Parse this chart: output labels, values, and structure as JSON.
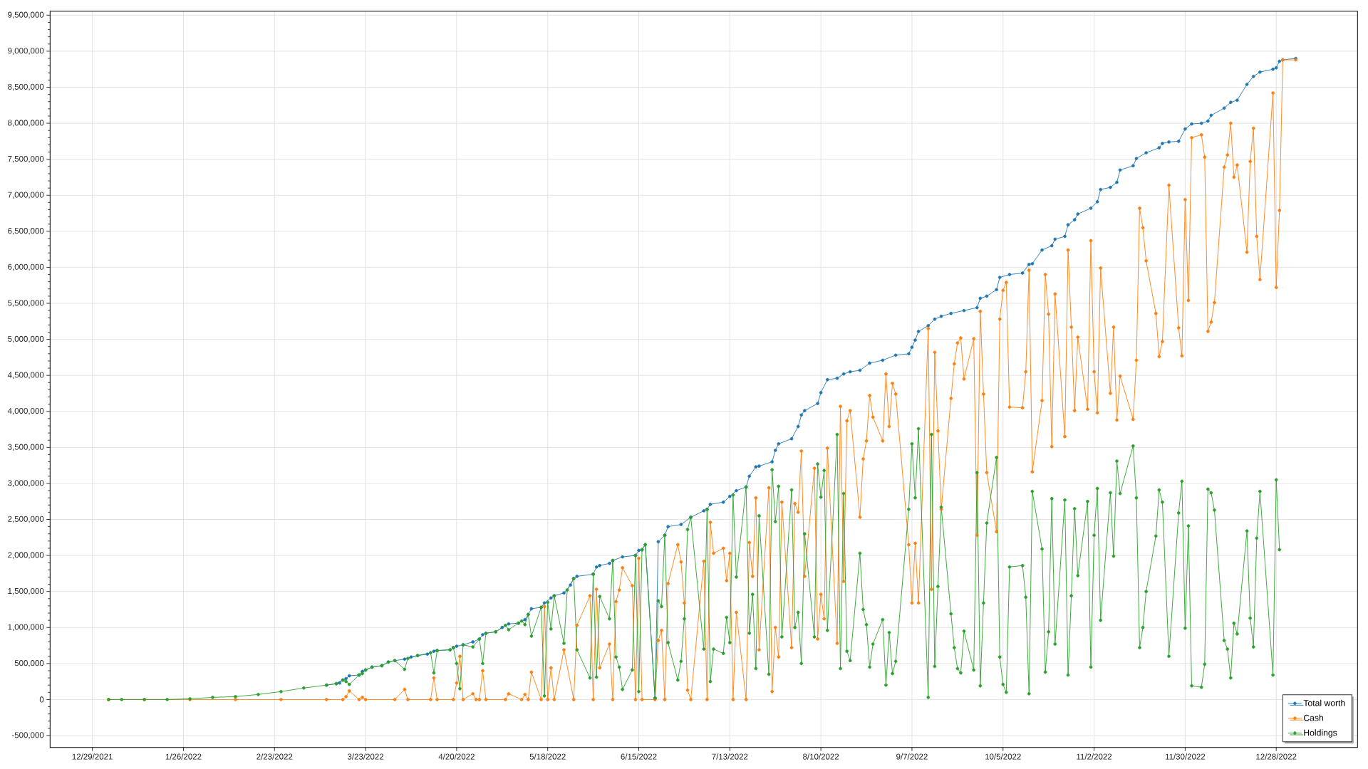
{
  "chart_data": {
    "type": "line",
    "xlim": [
      "2021-12-16",
      "2023-01-22"
    ],
    "ylim": [
      -665000,
      9555000
    ],
    "xticks": [
      {
        "value": "2021-12-29",
        "label": "12/29/2021"
      },
      {
        "value": "2022-01-26",
        "label": "1/26/2022"
      },
      {
        "value": "2022-02-23",
        "label": "2/23/2022"
      },
      {
        "value": "2022-03-23",
        "label": "3/23/2022"
      },
      {
        "value": "2022-04-20",
        "label": "4/20/2022"
      },
      {
        "value": "2022-05-18",
        "label": "5/18/2022"
      },
      {
        "value": "2022-06-15",
        "label": "6/15/2022"
      },
      {
        "value": "2022-07-13",
        "label": "7/13/2022"
      },
      {
        "value": "2022-08-10",
        "label": "8/10/2022"
      },
      {
        "value": "2022-09-07",
        "label": "9/7/2022"
      },
      {
        "value": "2022-10-05",
        "label": "10/5/2022"
      },
      {
        "value": "2022-11-02",
        "label": "11/2/2022"
      },
      {
        "value": "2022-11-30",
        "label": "11/30/2022"
      },
      {
        "value": "2022-12-28",
        "label": "12/28/2022"
      }
    ],
    "yticks": [
      {
        "value": -500000,
        "label": "-500,000"
      },
      0,
      {
        "value": 500000,
        "label": "500,000"
      },
      {
        "value": 1000000,
        "label": "1,000,000"
      },
      {
        "value": 1500000,
        "label": "1,500,000"
      },
      {
        "value": 2000000,
        "label": "2,000,000"
      },
      {
        "value": 2500000,
        "label": "2,500,000"
      },
      {
        "value": 3000000,
        "label": "3,000,000"
      },
      {
        "value": 3500000,
        "label": "3,500,000"
      },
      {
        "value": 4000000,
        "label": "4,000,000"
      },
      {
        "value": 4500000,
        "label": "4,500,000"
      },
      {
        "value": 5000000,
        "label": "5,000,000"
      },
      {
        "value": 5500000,
        "label": "5,500,000"
      },
      {
        "value": 6000000,
        "label": "6,000,000"
      },
      {
        "value": 6500000,
        "label": "6,500,000"
      },
      {
        "value": 7000000,
        "label": "7,000,000"
      },
      {
        "value": 7500000,
        "label": "7,500,000"
      },
      {
        "value": 8000000,
        "label": "8,000,000"
      },
      {
        "value": 8500000,
        "label": "8,500,000"
      },
      {
        "value": 9000000,
        "label": "9,000,000"
      },
      {
        "value": 9500000,
        "label": "9,500,000"
      }
    ],
    "grid": true,
    "legend": "bottom right",
    "marker": "circle",
    "line_style": "solid",
    "series": [
      {
        "name": "Total worth",
        "color": "#1f77b4",
        "x": [
          "2022-03-11",
          "2022-03-14",
          "2022-03-15",
          "2022-03-16",
          "2022-03-17",
          "2022-03-18",
          "2022-03-21",
          "2022-03-22",
          "2022-03-23",
          "2022-03-25",
          "2022-03-28",
          "2022-03-30",
          "2022-04-01",
          "2022-04-04",
          "2022-04-06",
          "2022-04-08",
          "2022-04-11",
          "2022-04-13",
          "2022-04-14",
          "2022-04-18",
          "2022-04-19",
          "2022-04-20",
          "2022-04-22",
          "2022-04-25",
          "2022-04-27",
          "2022-04-28",
          "2022-04-29",
          "2022-05-02",
          "2022-05-04",
          "2022-05-06",
          "2022-05-09",
          "2022-05-11",
          "2022-05-12",
          "2022-05-13",
          "2022-05-16",
          "2022-05-17",
          "2022-05-19",
          "2022-05-20",
          "2022-05-23",
          "2022-05-25",
          "2022-05-26",
          "2022-05-27",
          "2022-06-01",
          "2022-06-02",
          "2022-06-03",
          "2022-06-06",
          "2022-06-07",
          "2022-06-10",
          "2022-06-14",
          "2022-06-15",
          "2022-06-16",
          "2022-06-17",
          "2022-06-20",
          "2022-06-21",
          "2022-06-23",
          "2022-06-24",
          "2022-06-28",
          "2022-07-01",
          "2022-07-05",
          "2022-07-06",
          "2022-07-07",
          "2022-07-11",
          "2022-07-13",
          "2022-07-15",
          "2022-07-18",
          "2022-07-19",
          "2022-07-21",
          "2022-07-22",
          "2022-07-26",
          "2022-07-27",
          "2022-07-28",
          "2022-08-01",
          "2022-08-03",
          "2022-08-04",
          "2022-08-05",
          "2022-08-09",
          "2022-08-10",
          "2022-08-12",
          "2022-08-15",
          "2022-08-17",
          "2022-08-19",
          "2022-08-22",
          "2022-08-25",
          "2022-08-29",
          "2022-09-02",
          "2022-09-06",
          "2022-09-07",
          "2022-09-08",
          "2022-09-09",
          "2022-09-12",
          "2022-09-14",
          "2022-09-16",
          "2022-09-19",
          "2022-09-23",
          "2022-09-27",
          "2022-09-28",
          "2022-09-30",
          "2022-10-03",
          "2022-10-04",
          "2022-10-07",
          "2022-10-11",
          "2022-10-13",
          "2022-10-14",
          "2022-10-17",
          "2022-10-20",
          "2022-10-21",
          "2022-10-24",
          "2022-10-25",
          "2022-10-27",
          "2022-10-28",
          "2022-11-01",
          "2022-11-03",
          "2022-11-04",
          "2022-11-07",
          "2022-11-09",
          "2022-11-10",
          "2022-11-14",
          "2022-11-15",
          "2022-11-18",
          "2022-11-22",
          "2022-11-23",
          "2022-11-25",
          "2022-11-28",
          "2022-11-30",
          "2022-12-02",
          "2022-12-05",
          "2022-12-07",
          "2022-12-08",
          "2022-12-12",
          "2022-12-14",
          "2022-12-16",
          "2022-12-19",
          "2022-12-21",
          "2022-12-23",
          "2022-12-27",
          "2022-12-28",
          "2022-12-29",
          "2022-12-30",
          "2023-01-03"
        ],
        "values": [
          200000,
          220000,
          230000,
          270000,
          290000,
          330000,
          340000,
          390000,
          410000,
          450000,
          470000,
          520000,
          540000,
          560000,
          590000,
          610000,
          630000,
          670000,
          680000,
          690000,
          720000,
          740000,
          760000,
          800000,
          840000,
          900000,
          920000,
          940000,
          1000000,
          1050000,
          1060000,
          1110000,
          1180000,
          1260000,
          1280000,
          1340000,
          1410000,
          1440000,
          1480000,
          1590000,
          1680000,
          1710000,
          1740000,
          1840000,
          1860000,
          1890000,
          1930000,
          1980000,
          2000000,
          2070000,
          2080000,
          2150000,
          20000,
          2190000,
          2280000,
          2400000,
          2430000,
          2530000,
          2620000,
          2640000,
          2710000,
          2740000,
          2820000,
          2900000,
          2950000,
          3100000,
          3230000,
          3240000,
          3300000,
          3460000,
          3550000,
          3620000,
          3790000,
          3950000,
          4010000,
          4110000,
          4260000,
          4440000,
          4460000,
          4520000,
          4550000,
          4570000,
          4670000,
          4710000,
          4780000,
          4800000,
          4890000,
          4990000,
          5110000,
          5190000,
          5280000,
          5320000,
          5360000,
          5400000,
          5440000,
          5570000,
          5600000,
          5690000,
          5860000,
          5900000,
          5920000,
          6040000,
          6050000,
          6240000,
          6300000,
          6390000,
          6430000,
          6590000,
          6660000,
          6740000,
          6820000,
          6910000,
          7080000,
          7110000,
          7180000,
          7350000,
          7410000,
          7510000,
          7590000,
          7660000,
          7720000,
          7740000,
          7750000,
          7920000,
          7990000,
          8000000,
          8030000,
          8110000,
          8210000,
          8290000,
          8320000,
          8540000,
          8650000,
          8710000,
          8750000,
          8770000,
          8860000,
          8880000,
          8900000
        ]
      },
      {
        "name": "Cash",
        "color": "#ff7f0e",
        "x": [
          "2022-01-03",
          "2022-01-14",
          "2022-01-28",
          "2022-02-11",
          "2022-02-25",
          "2022-03-11",
          "2022-03-16",
          "2022-03-17",
          "2022-03-18",
          "2022-03-21",
          "2022-03-22",
          "2022-03-23",
          "2022-04-01",
          "2022-04-04",
          "2022-04-05",
          "2022-04-12",
          "2022-04-13",
          "2022-04-14",
          "2022-04-19",
          "2022-04-20",
          "2022-04-21",
          "2022-04-22",
          "2022-04-25",
          "2022-04-26",
          "2022-04-27",
          "2022-04-28",
          "2022-04-29",
          "2022-05-05",
          "2022-05-06",
          "2022-05-10",
          "2022-05-11",
          "2022-05-12",
          "2022-05-13",
          "2022-05-16",
          "2022-05-17",
          "2022-05-18",
          "2022-05-19",
          "2022-05-20",
          "2022-05-23",
          "2022-05-26",
          "2022-05-27",
          "2022-05-31",
          "2022-06-01",
          "2022-06-02",
          "2022-06-03",
          "2022-06-06",
          "2022-06-07",
          "2022-06-08",
          "2022-06-09",
          "2022-06-10",
          "2022-06-13",
          "2022-06-14",
          "2022-06-15",
          "2022-06-16",
          "2022-06-20",
          "2022-06-21",
          "2022-06-22",
          "2022-06-23",
          "2022-06-24",
          "2022-06-27",
          "2022-06-28",
          "2022-06-29",
          "2022-06-30",
          "2022-07-01",
          "2022-07-05",
          "2022-07-06",
          "2022-07-07",
          "2022-07-08",
          "2022-07-11",
          "2022-07-12",
          "2022-07-13",
          "2022-07-14",
          "2022-07-15",
          "2022-07-18",
          "2022-07-19",
          "2022-07-20",
          "2022-07-21",
          "2022-07-22",
          "2022-07-25",
          "2022-07-26",
          "2022-07-27",
          "2022-07-28",
          "2022-07-29",
          "2022-08-01",
          "2022-08-02",
          "2022-08-03",
          "2022-08-04",
          "2022-08-05",
          "2022-08-08",
          "2022-08-09",
          "2022-08-10",
          "2022-08-11",
          "2022-08-12",
          "2022-08-15",
          "2022-08-16",
          "2022-08-17",
          "2022-08-18",
          "2022-08-19",
          "2022-08-22",
          "2022-08-23",
          "2022-08-24",
          "2022-08-25",
          "2022-08-26",
          "2022-08-29",
          "2022-08-30",
          "2022-08-31",
          "2022-09-01",
          "2022-09-02",
          "2022-09-06",
          "2022-09-07",
          "2022-09-08",
          "2022-09-09",
          "2022-09-12",
          "2022-09-13",
          "2022-09-14",
          "2022-09-15",
          "2022-09-16",
          "2022-09-19",
          "2022-09-20",
          "2022-09-21",
          "2022-09-22",
          "2022-09-23",
          "2022-09-26",
          "2022-09-27",
          "2022-09-28",
          "2022-09-29",
          "2022-09-30",
          "2022-10-03",
          "2022-10-04",
          "2022-10-05",
          "2022-10-06",
          "2022-10-07",
          "2022-10-11",
          "2022-10-12",
          "2022-10-13",
          "2022-10-14",
          "2022-10-17",
          "2022-10-18",
          "2022-10-19",
          "2022-10-20",
          "2022-10-21",
          "2022-10-24",
          "2022-10-25",
          "2022-10-26",
          "2022-10-27",
          "2022-10-28",
          "2022-10-31",
          "2022-11-01",
          "2022-11-02",
          "2022-11-03",
          "2022-11-04",
          "2022-11-07",
          "2022-11-08",
          "2022-11-09",
          "2022-11-10",
          "2022-11-14",
          "2022-11-15",
          "2022-11-16",
          "2022-11-17",
          "2022-11-18",
          "2022-11-21",
          "2022-11-22",
          "2022-11-23",
          "2022-11-25",
          "2022-11-28",
          "2022-11-29",
          "2022-11-30",
          "2022-12-01",
          "2022-12-02",
          "2022-12-05",
          "2022-12-06",
          "2022-12-07",
          "2022-12-08",
          "2022-12-09",
          "2022-12-12",
          "2022-12-13",
          "2022-12-14",
          "2022-12-15",
          "2022-12-16",
          "2022-12-19",
          "2022-12-20",
          "2022-12-21",
          "2022-12-22",
          "2022-12-23",
          "2022-12-27",
          "2022-12-28",
          "2022-12-29",
          "2022-12-30",
          "2023-01-03"
        ],
        "values": [
          0,
          0,
          0,
          0,
          0,
          0,
          0,
          40000,
          120000,
          0,
          30000,
          0,
          0,
          140000,
          0,
          0,
          300000,
          0,
          0,
          230000,
          600000,
          0,
          80000,
          0,
          0,
          400000,
          0,
          0,
          80000,
          0,
          70000,
          0,
          380000,
          0,
          1290000,
          0,
          440000,
          0,
          690000,
          0,
          1030000,
          1440000,
          0,
          1530000,
          440000,
          770000,
          0,
          1360000,
          1520000,
          1830000,
          1580000,
          0,
          1960000,
          0,
          0,
          820000,
          960000,
          0,
          1610000,
          2150000,
          1910000,
          1340000,
          130000,
          0,
          1920000,
          0,
          2460000,
          2030000,
          2100000,
          1650000,
          2030000,
          0,
          1210000,
          0,
          2180000,
          1710000,
          2800000,
          690000,
          2940000,
          110000,
          1000000,
          590000,
          2740000,
          720000,
          2720000,
          2600000,
          3450000,
          1710000,
          3210000,
          840000,
          1460000,
          1120000,
          3490000,
          780000,
          4070000,
          1640000,
          3870000,
          4010000,
          2530000,
          3340000,
          3590000,
          4220000,
          3920000,
          3590000,
          4520000,
          3790000,
          4390000,
          4240000,
          2150000,
          1340000,
          2170000,
          1340000,
          5150000,
          1530000,
          4820000,
          3730000,
          2640000,
          4180000,
          4660000,
          4950000,
          5020000,
          4450000,
          5010000,
          2280000,
          5390000,
          4240000,
          3150000,
          2330000,
          5280000,
          5680000,
          5790000,
          4060000,
          4050000,
          4550000,
          5960000,
          3160000,
          4150000,
          5900000,
          5350000,
          3510000,
          5630000,
          3650000,
          6240000,
          5170000,
          4010000,
          5030000,
          4030000,
          6370000,
          4550000,
          3980000,
          5990000,
          4250000,
          5170000,
          3880000,
          4490000,
          3890000,
          4710000,
          6820000,
          6550000,
          6090000,
          5360000,
          4760000,
          4970000,
          7140000,
          5160000,
          4770000,
          6940000,
          5540000,
          7800000,
          7840000,
          7530000,
          5110000,
          5240000,
          5510000,
          7390000,
          7560000,
          8000000,
          7250000,
          7420000,
          6210000,
          7470000,
          7930000,
          6430000,
          5830000,
          8420000,
          5720000,
          6790000,
          8880000,
          8880000
        ]
      },
      {
        "name": "Holdings",
        "color": "#2ca02c",
        "x": [
          "2022-01-03",
          "2022-01-07",
          "2022-01-14",
          "2022-01-21",
          "2022-01-28",
          "2022-02-04",
          "2022-02-11",
          "2022-02-18",
          "2022-02-25",
          "2022-03-04",
          "2022-03-11",
          "2022-03-14",
          "2022-03-16",
          "2022-03-17",
          "2022-03-18",
          "2022-03-21",
          "2022-03-22",
          "2022-03-23",
          "2022-03-25",
          "2022-03-28",
          "2022-03-30",
          "2022-04-01",
          "2022-04-04",
          "2022-04-05",
          "2022-04-08",
          "2022-04-12",
          "2022-04-13",
          "2022-04-14",
          "2022-04-18",
          "2022-04-19",
          "2022-04-20",
          "2022-04-21",
          "2022-04-22",
          "2022-04-25",
          "2022-04-27",
          "2022-04-28",
          "2022-04-29",
          "2022-05-02",
          "2022-05-05",
          "2022-05-06",
          "2022-05-09",
          "2022-05-10",
          "2022-05-11",
          "2022-05-12",
          "2022-05-13",
          "2022-05-16",
          "2022-05-17",
          "2022-05-18",
          "2022-05-19",
          "2022-05-20",
          "2022-05-23",
          "2022-05-24",
          "2022-05-26",
          "2022-05-27",
          "2022-05-31",
          "2022-06-01",
          "2022-06-02",
          "2022-06-03",
          "2022-06-06",
          "2022-06-07",
          "2022-06-08",
          "2022-06-09",
          "2022-06-10",
          "2022-06-13",
          "2022-06-14",
          "2022-06-15",
          "2022-06-16",
          "2022-06-17",
          "2022-06-20",
          "2022-06-21",
          "2022-06-22",
          "2022-06-23",
          "2022-06-24",
          "2022-06-27",
          "2022-06-28",
          "2022-06-29",
          "2022-06-30",
          "2022-07-01",
          "2022-07-05",
          "2022-07-06",
          "2022-07-07",
          "2022-07-08",
          "2022-07-11",
          "2022-07-12",
          "2022-07-13",
          "2022-07-14",
          "2022-07-15",
          "2022-07-18",
          "2022-07-19",
          "2022-07-20",
          "2022-07-21",
          "2022-07-22",
          "2022-07-25",
          "2022-07-26",
          "2022-07-27",
          "2022-07-28",
          "2022-07-29",
          "2022-08-01",
          "2022-08-02",
          "2022-08-03",
          "2022-08-04",
          "2022-08-05",
          "2022-08-08",
          "2022-08-09",
          "2022-08-10",
          "2022-08-11",
          "2022-08-12",
          "2022-08-15",
          "2022-08-16",
          "2022-08-17",
          "2022-08-18",
          "2022-08-19",
          "2022-08-22",
          "2022-08-23",
          "2022-08-24",
          "2022-08-25",
          "2022-08-26",
          "2022-08-29",
          "2022-08-30",
          "2022-08-31",
          "2022-09-01",
          "2022-09-02",
          "2022-09-06",
          "2022-09-07",
          "2022-09-08",
          "2022-09-09",
          "2022-09-12",
          "2022-09-13",
          "2022-09-14",
          "2022-09-15",
          "2022-09-16",
          "2022-09-19",
          "2022-09-20",
          "2022-09-21",
          "2022-09-22",
          "2022-09-23",
          "2022-09-26",
          "2022-09-27",
          "2022-09-28",
          "2022-09-29",
          "2022-09-30",
          "2022-10-03",
          "2022-10-04",
          "2022-10-05",
          "2022-10-06",
          "2022-10-07",
          "2022-10-11",
          "2022-10-12",
          "2022-10-13",
          "2022-10-14",
          "2022-10-17",
          "2022-10-18",
          "2022-10-19",
          "2022-10-20",
          "2022-10-21",
          "2022-10-24",
          "2022-10-25",
          "2022-10-26",
          "2022-10-27",
          "2022-10-28",
          "2022-10-31",
          "2022-11-01",
          "2022-11-02",
          "2022-11-03",
          "2022-11-04",
          "2022-11-07",
          "2022-11-08",
          "2022-11-09",
          "2022-11-10",
          "2022-11-14",
          "2022-11-15",
          "2022-11-16",
          "2022-11-17",
          "2022-11-18",
          "2022-11-21",
          "2022-11-22",
          "2022-11-23",
          "2022-11-25",
          "2022-11-28",
          "2022-11-29",
          "2022-11-30",
          "2022-12-01",
          "2022-12-02",
          "2022-12-05",
          "2022-12-06",
          "2022-12-07",
          "2022-12-08",
          "2022-12-09",
          "2022-12-12",
          "2022-12-13",
          "2022-12-14",
          "2022-12-15",
          "2022-12-16",
          "2022-12-19",
          "2022-12-20",
          "2022-12-21",
          "2022-12-22",
          "2022-12-23",
          "2022-12-27",
          "2022-12-28",
          "2022-12-29"
        ],
        "values": [
          0,
          0,
          0,
          0,
          10000,
          30000,
          40000,
          70000,
          110000,
          160000,
          200000,
          220000,
          270000,
          250000,
          210000,
          340000,
          360000,
          410000,
          450000,
          470000,
          520000,
          540000,
          420000,
          570000,
          610000,
          650000,
          370000,
          680000,
          690000,
          720000,
          500000,
          150000,
          760000,
          730000,
          840000,
          500000,
          920000,
          940000,
          1030000,
          970000,
          1060000,
          1090000,
          1040000,
          1180000,
          880000,
          1280000,
          50000,
          1350000,
          980000,
          1440000,
          780000,
          1520000,
          1680000,
          690000,
          300000,
          1740000,
          310000,
          1430000,
          1120000,
          1930000,
          590000,
          450000,
          140000,
          410000,
          2000000,
          110000,
          2080000,
          2150000,
          20000,
          1370000,
          1290000,
          2280000,
          790000,
          270000,
          530000,
          1120000,
          2360000,
          2530000,
          700000,
          2640000,
          250000,
          700000,
          640000,
          1140000,
          790000,
          2840000,
          1700000,
          2950000,
          920000,
          1460000,
          430000,
          2550000,
          350000,
          3190000,
          2470000,
          2960000,
          870000,
          2910000,
          1000000,
          1210000,
          500000,
          2300000,
          870000,
          3270000,
          2810000,
          3180000,
          960000,
          3680000,
          430000,
          2860000,
          670000,
          540000,
          2030000,
          1250000,
          1040000,
          450000,
          770000,
          1110000,
          200000,
          930000,
          360000,
          530000,
          2640000,
          3550000,
          2800000,
          3760000,
          30000,
          3680000,
          460000,
          1570000,
          2670000,
          1190000,
          720000,
          430000,
          370000,
          950000,
          410000,
          3150000,
          190000,
          1340000,
          2450000,
          3360000,
          590000,
          210000,
          100000,
          1840000,
          1860000,
          1420000,
          80000,
          2890000,
          2090000,
          380000,
          940000,
          2790000,
          770000,
          2770000,
          340000,
          1440000,
          2650000,
          1720000,
          2750000,
          450000,
          2280000,
          2930000,
          1100000,
          2870000,
          1990000,
          3310000,
          2860000,
          3520000,
          2800000,
          720000,
          1000000,
          1500000,
          2270000,
          2910000,
          2740000,
          600000,
          2590000,
          3030000,
          990000,
          2410000,
          190000,
          170000,
          490000,
          2920000,
          2870000,
          2630000,
          820000,
          700000,
          300000,
          1060000,
          910000,
          2340000,
          1130000,
          730000,
          2240000,
          2890000,
          340000,
          3050000,
          2080000
        ]
      }
    ]
  }
}
